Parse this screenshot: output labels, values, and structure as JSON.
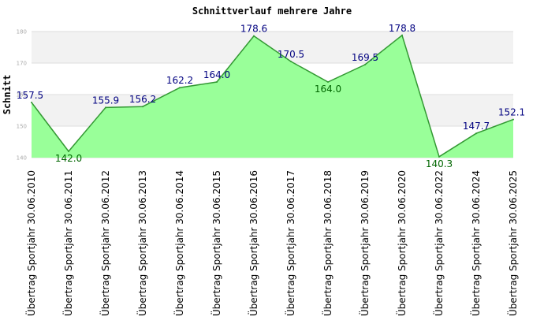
{
  "chart_data": {
    "type": "area",
    "title": "Schnittverlauf mehrere Jahre",
    "ylabel": "Schnitt",
    "xlabel": "",
    "ylim": [
      140,
      180
    ],
    "yticks": [
      140,
      150,
      160,
      170,
      180
    ],
    "grid": "horizontal bands",
    "categories": [
      "Übertrag Sportjahr 30.06.2010",
      "Übertrag Sportjahr 30.06.2011",
      "Übertrag Sportjahr 30.06.2012",
      "Übertrag Sportjahr 30.06.2013",
      "Übertrag Sportjahr 30.06.2014",
      "Übertrag Sportjahr 30.06.2015",
      "Übertrag Sportjahr 30.06.2016",
      "Übertrag Sportjahr 30.06.2017",
      "Übertrag Sportjahr 30.06.2018",
      "Übertrag Sportjahr 30.06.2019",
      "Übertrag Sportjahr 30.06.2020",
      "Übertrag Sportjahr 30.06.2022",
      "Übertrag Sportjahr 30.06.2024",
      "Übertrag Sportjahr 30.06.2025"
    ],
    "values": [
      157.5,
      142.0,
      155.9,
      156.2,
      162.2,
      164.0,
      178.6,
      170.5,
      164.0,
      169.5,
      178.8,
      140.3,
      147.7,
      152.1
    ],
    "labels": [
      "157.5",
      "142.0",
      "155.9",
      "156.2",
      "162.2",
      "164.0",
      "178.6",
      "170.5",
      "164.0",
      "169.5",
      "178.8",
      "140.3",
      "147.7",
      "152.1"
    ],
    "colors": {
      "fill": "#99ff99",
      "line": "#339933",
      "band": "#f2f2f2",
      "gridline": "#dddddd",
      "label_above": "#000080",
      "label_below": "#006600"
    }
  }
}
